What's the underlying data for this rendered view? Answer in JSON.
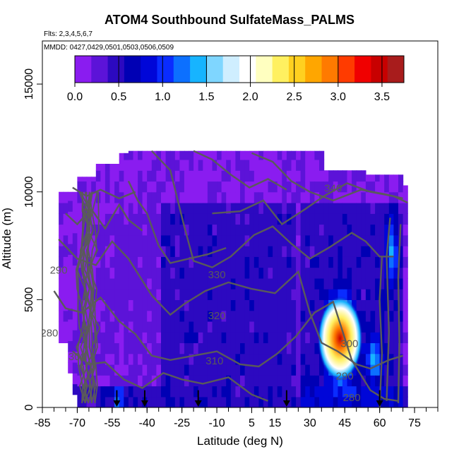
{
  "title": "ATOM4 Southbound SulfateMass_PALMS",
  "flights_note": "Flts: 2,3,4,5,6,7",
  "mmdd_note": "MMDD: 0427,0429,0501,0503,0506,0509",
  "colors": {
    "colorbar": [
      "#8a1cf0",
      "#5c13d8",
      "#2c09c0",
      "#0000b4",
      "#0006d8",
      "#0a2cff",
      "#0c70ff",
      "#17b4ff",
      "#7fd6ff",
      "#cfeeff",
      "#ffffff",
      "#ffffc0",
      "#fff060",
      "#ffd020",
      "#ffa600",
      "#ff7a00",
      "#ff3b00",
      "#f00000",
      "#c80000",
      "#a81c1c"
    ],
    "contour": "#5a5a5a",
    "arrow": "#000000"
  },
  "chart_data": {
    "type": "heatmap",
    "title": "ATOM4 Southbound SulfateMass_PALMS",
    "xlabel": "Latitude (deg N)",
    "ylabel": "Altitude (m)",
    "xlim": [
      -85,
      85
    ],
    "ylim": [
      0,
      17000
    ],
    "x_ticks": [
      -85,
      -70,
      -55,
      -40,
      -25,
      -10,
      5,
      15,
      30,
      45,
      60,
      75
    ],
    "y_ticks": [
      0,
      5000,
      10000,
      15000
    ],
    "colorbar": {
      "range": [
        0.0,
        3.75
      ],
      "ticks": [
        "0.0",
        "0.5",
        "1.0",
        "1.5",
        "2.0",
        "2.5",
        "3.0",
        "3.5"
      ]
    },
    "contour_labels": [
      "340",
      "330",
      "320",
      "310",
      "300",
      "290",
      "280",
      "300",
      "290",
      "280"
    ],
    "arrow_latitudes": [
      -53,
      -41,
      -18,
      20,
      60
    ],
    "hotspot": {
      "lat": 43,
      "alt": 3200,
      "value": 3.6
    }
  }
}
